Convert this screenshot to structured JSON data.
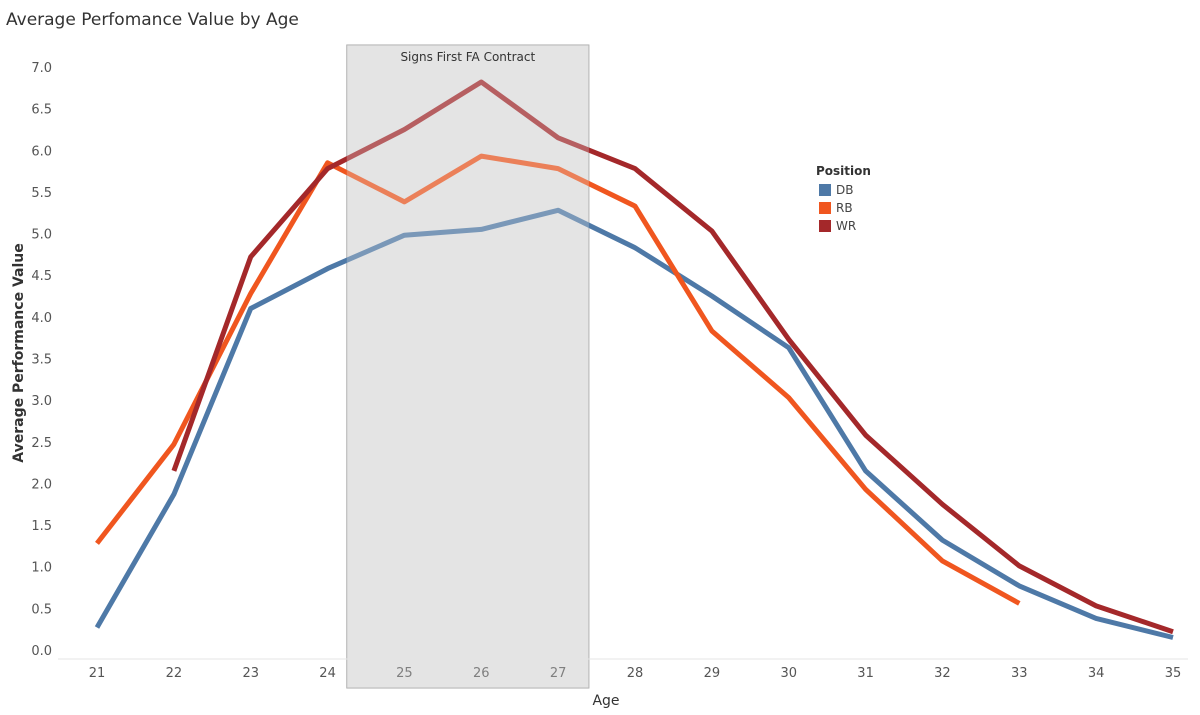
{
  "chart_data": {
    "type": "line",
    "title": "Average Perfomance Value by Age",
    "xlabel": "Age",
    "ylabel": "Average Performance Value",
    "x": [
      21,
      22,
      23,
      24,
      25,
      26,
      27,
      28,
      29,
      30,
      31,
      32,
      33,
      34,
      35
    ],
    "xlim": [
      21,
      35
    ],
    "ylim": [
      0,
      7
    ],
    "yticks": [
      "0.0",
      "0.5",
      "1.0",
      "1.5",
      "2.0",
      "2.5",
      "3.0",
      "3.5",
      "4.0",
      "4.5",
      "5.0",
      "5.5",
      "6.0",
      "6.5",
      "7.0"
    ],
    "grid": false,
    "legend": {
      "title": "Position",
      "placement": "right"
    },
    "series": [
      {
        "name": "DB",
        "color": "#4e79a7",
        "values": [
          0.27,
          1.87,
          4.1,
          4.58,
          4.98,
          5.05,
          5.28,
          4.83,
          4.25,
          3.63,
          2.15,
          1.32,
          0.77,
          0.38,
          0.15
        ]
      },
      {
        "name": "RB",
        "color": "#f0561f",
        "values": [
          1.28,
          2.47,
          4.28,
          5.85,
          5.38,
          5.93,
          5.78,
          5.33,
          3.83,
          3.03,
          1.93,
          1.07,
          0.56,
          null,
          null
        ]
      },
      {
        "name": "WR",
        "color": "#a4282a",
        "values": [
          null,
          2.15,
          4.72,
          5.78,
          6.25,
          6.82,
          6.15,
          5.78,
          5.03,
          3.73,
          2.58,
          1.75,
          1.01,
          0.53,
          0.22
        ]
      }
    ],
    "annotation": {
      "label": "Signs First FA Contract",
      "x_start": 24.25,
      "x_end": 27.4
    }
  }
}
